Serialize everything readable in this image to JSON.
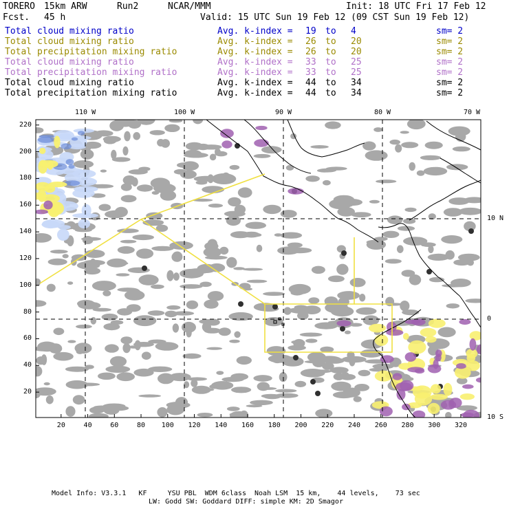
{
  "header": {
    "model": "TORERO",
    "resolution": "15km ARW",
    "run": "Run2",
    "org": "NCAR/MMM",
    "fcst_label": "Fcst.",
    "fcst_value": "45 h",
    "init": "Init: 18 UTC Fri 17 Feb 12",
    "valid": "Valid: 15 UTC Sun 19 Feb 12 (09 CST Sun 19 Feb 12)"
  },
  "legend_rows": [
    {
      "field": "Total cloud mixing ratio",
      "kidx": "Avg. k-index =",
      "a": "19",
      "to": "to",
      "b": "4",
      "sm": "sm= 2",
      "color": "#0000c8"
    },
    {
      "field": "Total cloud mixing ratio",
      "kidx": "Avg. k-index =",
      "a": "26",
      "to": "to",
      "b": "20",
      "sm": "sm= 2",
      "color": "#9a8a00"
    },
    {
      "field": "Total precipitation mixing ratio",
      "kidx": "Avg. k-index =",
      "a": "26",
      "to": "to",
      "b": "20",
      "sm": "sm= 2",
      "color": "#9a8a00"
    },
    {
      "field": "Total cloud mixing ratio",
      "kidx": "Avg. k-index =",
      "a": "33",
      "to": "to",
      "b": "25",
      "sm": "sm= 2",
      "color": "#b070c8"
    },
    {
      "field": "Total precipitation mixing ratio",
      "kidx": "Avg. k-index =",
      "a": "33",
      "to": "to",
      "b": "25",
      "sm": "sm= 2",
      "color": "#b070c8"
    },
    {
      "field": "Total cloud mixing ratio",
      "kidx": "Avg. k-index =",
      "a": "44",
      "to": "to",
      "b": "34",
      "sm": "sm= 2",
      "color": "#000000"
    },
    {
      "field": "Total precipitation mixing ratio",
      "kidx": "Avg. k-index =",
      "a": "44",
      "to": "to",
      "b": "34",
      "sm": "sm= 2",
      "color": "#000000"
    }
  ],
  "map": {
    "lon_labels": [
      "110 W",
      "100 W",
      "90 W",
      "80 W",
      "70 W"
    ],
    "lat_labels": [
      "10 N",
      "0",
      "10 S"
    ],
    "x_ticks": [
      "20",
      "40",
      "60",
      "80",
      "100",
      "120",
      "140",
      "160",
      "180",
      "200",
      "220",
      "240",
      "260",
      "280",
      "300",
      "320"
    ],
    "y_ticks": [
      "20",
      "40",
      "60",
      "80",
      "100",
      "120",
      "140",
      "160",
      "180",
      "200",
      "220"
    ],
    "colors": {
      "cloud_gray": "#a8a8a8",
      "cloud_dark": "#303030",
      "blue_light": "#c8d8f8",
      "blue": "#6a8ad8",
      "yellow": "#f8f070",
      "purple": "#a060b0",
      "domain_line": "#f0e040"
    }
  },
  "footer": {
    "line1": "Model Info: V3.3.1   KF     YSU PBL  WDM 6class  Noah LSM  15 km,    44 levels,    73 sec",
    "line2": "LW: Godd SW: Goddard DIFF: simple KM: 2D Smagor"
  }
}
